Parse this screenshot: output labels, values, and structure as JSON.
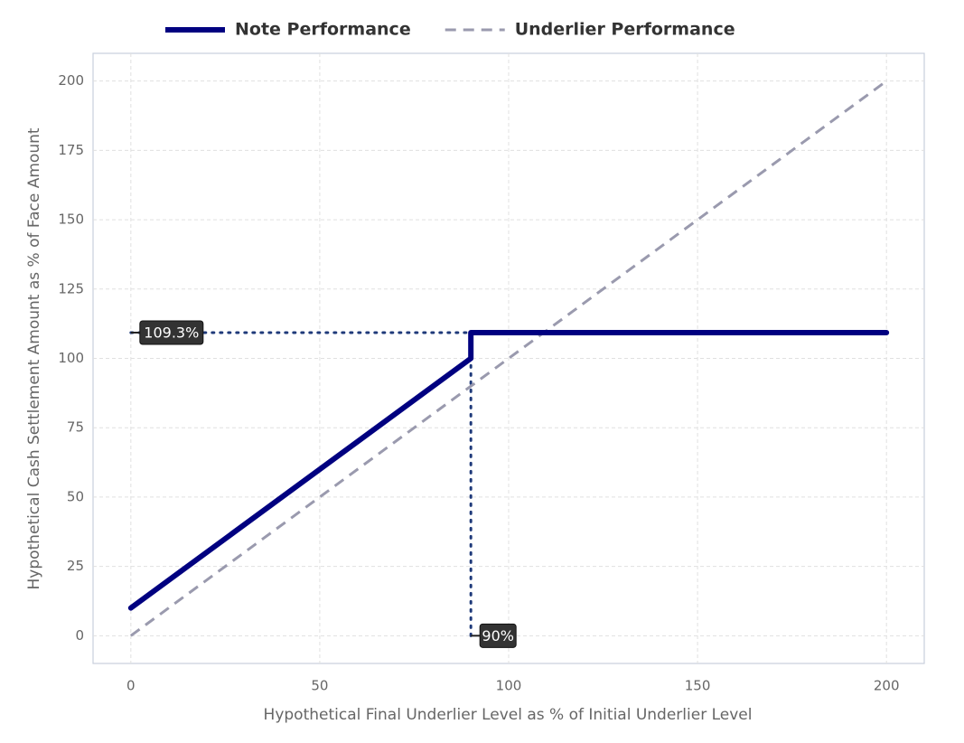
{
  "chart_data": {
    "type": "line",
    "xlabel": "Hypothetical Final Underlier Level as % of Initial Underlier Level",
    "ylabel": "Hypothetical Cash Settlement Amount as % of Face Amount",
    "series": [
      {
        "name": "Note Performance",
        "color": "#000080",
        "style": "solid",
        "x": [
          0,
          90,
          90,
          200
        ],
        "values": [
          10,
          100,
          109.3,
          109.3
        ]
      },
      {
        "name": "Underlier Performance",
        "color": "#9a9aae",
        "style": "dashed",
        "x": [
          0,
          200
        ],
        "values": [
          0,
          200
        ]
      }
    ],
    "xlim": [
      -10,
      210
    ],
    "ylim": [
      -10,
      210
    ],
    "xticks": [
      0,
      50,
      100,
      150,
      200
    ],
    "yticks": [
      0,
      25,
      50,
      75,
      100,
      125,
      150,
      175,
      200
    ],
    "grid": true,
    "legend": "top",
    "annotations": [
      {
        "label": "109.3%",
        "value": 109.3,
        "axis": "y"
      },
      {
        "label": "90%",
        "value": 90,
        "axis": "x"
      }
    ]
  }
}
